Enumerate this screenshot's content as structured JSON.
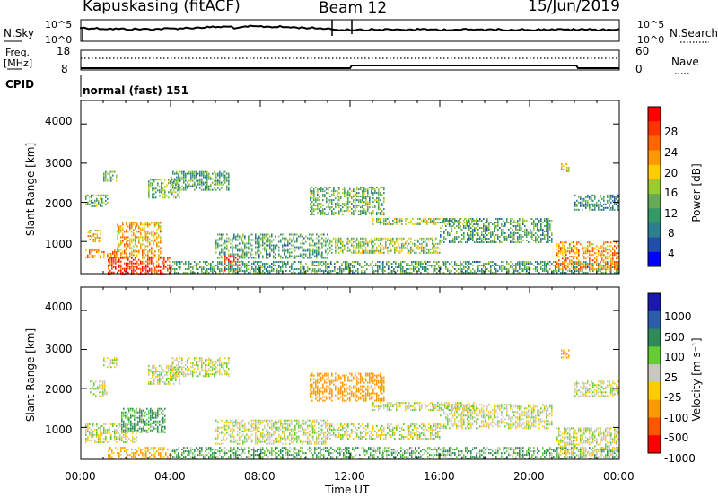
{
  "header": {
    "radar": "Kapuskasing (fitACF)",
    "beam": "Beam 12",
    "date": "15/Jun/2019"
  },
  "top_panels": {
    "nsky_label": "N.Sky",
    "nsearch_label": "N.Search",
    "noise_ticks_left": [
      "10^5",
      "10^0"
    ],
    "noise_ticks_right": [
      "10^5",
      "10^0"
    ],
    "freq_label": "Freq.",
    "freq_unit": "[MHz]",
    "freq_ticks": [
      "18",
      "8"
    ],
    "nave_ticks": [
      "60",
      "0"
    ],
    "nave_label": "Nave",
    "cpid_label": "CPID",
    "cpid_value": "normal (fast) 151"
  },
  "colorbars": {
    "power": {
      "label": "Power [dB]",
      "ticks": [
        "28",
        "24",
        "20",
        "16",
        "12",
        "8",
        "4"
      ],
      "colors": [
        "#ff0000",
        "#ff3300",
        "#ff6600",
        "#ff9900",
        "#ffcc00",
        "#99cc33",
        "#66aa55",
        "#339966",
        "#2b7f8f",
        "#1f4faa",
        "#0000ff"
      ]
    },
    "velocity": {
      "label": "Velocity [m s⁻¹]",
      "ticks": [
        "1000",
        "500",
        "100",
        "25",
        "-25",
        "-100",
        "-500",
        "-1000"
      ],
      "colors": [
        "#1a1aaa",
        "#2b5ea8",
        "#2f8a5a",
        "#66cc33",
        "#c8c8c0",
        "#ffcc00",
        "#ff9900",
        "#ff5500",
        "#ff0000"
      ]
    }
  },
  "chart_data": [
    {
      "type": "heatmap",
      "title": "Power",
      "ylabel": "Slant Range [km]",
      "xlabel": "",
      "ylim": [
        180,
        4600
      ],
      "xlim": [
        "00:00",
        "24:00"
      ],
      "y_ticks": [
        "1000",
        "2000",
        "3000",
        "4000"
      ],
      "x_ticks": [],
      "regions": [
        {
          "t0": 0.2,
          "t1": 1.6,
          "r0": 600,
          "r1": 800,
          "value": 22
        },
        {
          "t0": 1.6,
          "t1": 3.6,
          "r0": 600,
          "r1": 1500,
          "value": 20
        },
        {
          "t0": 0.2,
          "t1": 1.2,
          "r0": 1900,
          "r1": 2200,
          "value": 12
        },
        {
          "t0": 1.0,
          "t1": 1.6,
          "r0": 2550,
          "r1": 2800,
          "value": 12
        },
        {
          "t0": 3.0,
          "t1": 4.4,
          "r0": 2100,
          "r1": 2600,
          "value": 12
        },
        {
          "t0": 4.0,
          "t1": 6.6,
          "r0": 2300,
          "r1": 2800,
          "value": 10
        },
        {
          "t0": 0.3,
          "t1": 0.9,
          "r0": 1000,
          "r1": 1300,
          "value": 18
        },
        {
          "t0": 1.2,
          "t1": 4.0,
          "r0": 180,
          "r1": 600,
          "value": 27
        },
        {
          "t0": 6.4,
          "t1": 7.2,
          "r0": 250,
          "r1": 650,
          "value": 27
        },
        {
          "t0": 4.0,
          "t1": 24.0,
          "r0": 180,
          "r1": 500,
          "value": 10
        },
        {
          "t0": 6.0,
          "t1": 11.0,
          "r0": 600,
          "r1": 1200,
          "value": 10
        },
        {
          "t0": 11.0,
          "t1": 16.0,
          "r0": 700,
          "r1": 1100,
          "value": 14
        },
        {
          "t0": 13.0,
          "t1": 17.5,
          "r0": 1450,
          "r1": 1600,
          "value": 14
        },
        {
          "t0": 16.0,
          "t1": 21.0,
          "r0": 1000,
          "r1": 1600,
          "value": 10
        },
        {
          "t0": 10.2,
          "t1": 13.5,
          "r0": 1700,
          "r1": 2400,
          "value": 12
        },
        {
          "t0": 21.2,
          "t1": 24.0,
          "r0": 300,
          "r1": 1000,
          "value": 22
        },
        {
          "t0": 22.0,
          "t1": 24.0,
          "r0": 1800,
          "r1": 2200,
          "value": 8
        },
        {
          "t0": 21.4,
          "t1": 21.8,
          "r0": 2800,
          "r1": 3000,
          "value": 18
        }
      ]
    },
    {
      "type": "heatmap",
      "title": "Velocity",
      "ylabel": "Slant Range [km]",
      "xlabel": "Time UT",
      "ylim": [
        180,
        4600
      ],
      "xlim": [
        "00:00",
        "24:00"
      ],
      "y_ticks": [
        "1000",
        "2000",
        "3000",
        "4000"
      ],
      "x_ticks": [
        "00:00",
        "04:00",
        "08:00",
        "12:00",
        "16:00",
        "20:00",
        "00:00"
      ],
      "regions": [
        {
          "t0": 0.2,
          "t1": 2.5,
          "r0": 600,
          "r1": 1100,
          "value": 0
        },
        {
          "t0": 1.8,
          "t1": 3.8,
          "r0": 900,
          "r1": 1500,
          "value": 80
        },
        {
          "t0": 0.4,
          "t1": 1.2,
          "r0": 1800,
          "r1": 2200,
          "value": 0
        },
        {
          "t0": 1.0,
          "t1": 1.6,
          "r0": 2550,
          "r1": 2800,
          "value": 0
        },
        {
          "t0": 3.0,
          "t1": 4.4,
          "r0": 2100,
          "r1": 2600,
          "value": 0
        },
        {
          "t0": 4.0,
          "t1": 6.6,
          "r0": 2300,
          "r1": 2800,
          "value": 0
        },
        {
          "t0": 1.2,
          "t1": 4.0,
          "r0": 200,
          "r1": 500,
          "value": -80
        },
        {
          "t0": 4.0,
          "t1": 24.0,
          "r0": 180,
          "r1": 500,
          "value": 60
        },
        {
          "t0": 6.0,
          "t1": 11.0,
          "r0": 600,
          "r1": 1200,
          "value": 0
        },
        {
          "t0": 11.0,
          "t1": 16.0,
          "r0": 700,
          "r1": 1100,
          "value": 0
        },
        {
          "t0": 13.0,
          "t1": 17.5,
          "r0": 1450,
          "r1": 1650,
          "value": 0
        },
        {
          "t0": 16.0,
          "t1": 21.0,
          "r0": 1000,
          "r1": 1600,
          "value": 0
        },
        {
          "t0": 10.2,
          "t1": 13.5,
          "r0": 1700,
          "r1": 2400,
          "value": -150
        },
        {
          "t0": 21.2,
          "t1": 24.0,
          "r0": 300,
          "r1": 1000,
          "value": 0
        },
        {
          "t0": 22.0,
          "t1": 24.0,
          "r0": 1800,
          "r1": 2200,
          "value": 0
        },
        {
          "t0": 21.4,
          "t1": 21.8,
          "r0": 2800,
          "r1": 3000,
          "value": -100
        }
      ]
    }
  ]
}
